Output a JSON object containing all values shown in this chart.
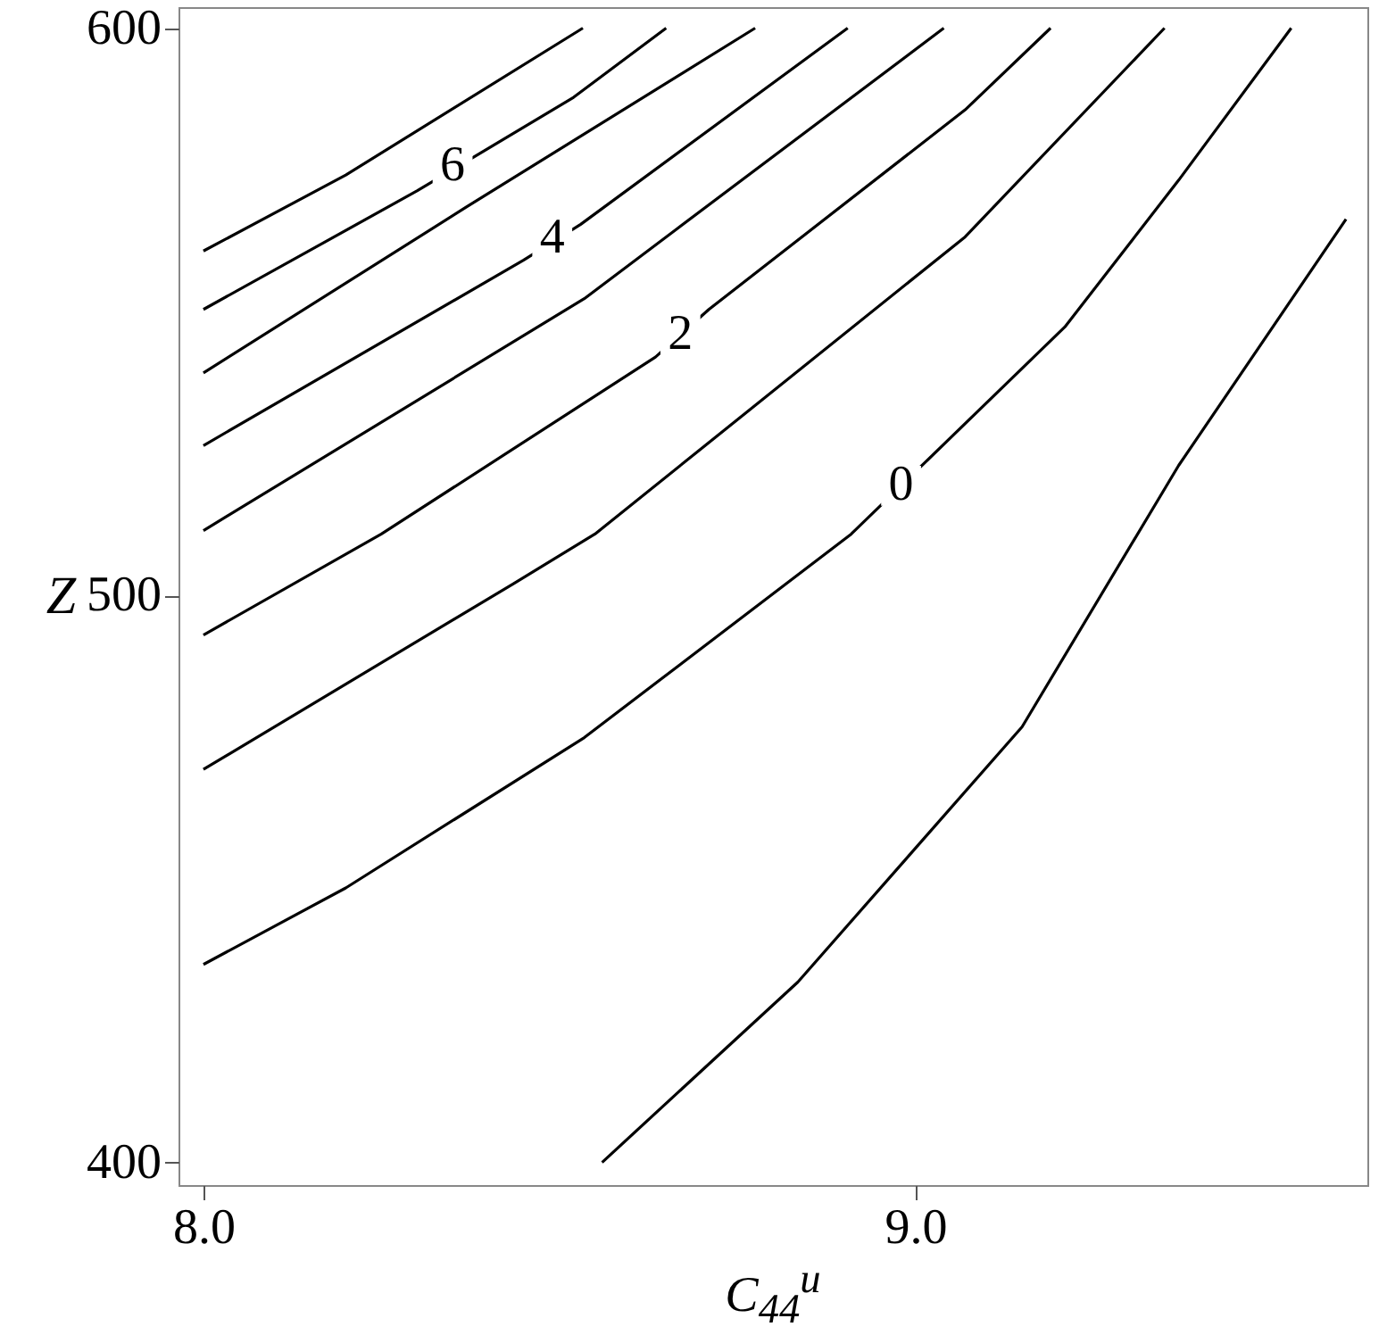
{
  "chart_data": {
    "type": "line",
    "xlabel": "C$_{44}$$^{u}$",
    "ylabel": "Z",
    "xlim": [
      7.965,
      9.635
    ],
    "ylim": [
      396,
      603.7
    ],
    "xticks": [
      {
        "value": 8,
        "label": "8.0"
      },
      {
        "value": 9,
        "label": "9.0"
      }
    ],
    "yticks": [
      400,
      500,
      600
    ],
    "grid": false,
    "marker": "none",
    "line_style": "solid",
    "series": [
      {
        "color": "#000000",
        "x": [
          8.56,
          8.835,
          9.15,
          9.37,
          9.605
        ],
        "values": [
          400,
          431.8,
          476.8,
          522.9,
          566.3
        ]
      },
      {
        "color": "#000000",
        "x": [
          8.0,
          8.2,
          8.535,
          8.91,
          9.21,
          9.37,
          9.528
        ],
        "values": [
          434.9,
          448.4,
          474.9,
          510.8,
          547.3,
          573.2,
          600
        ]
      },
      {
        "color": "#000000",
        "x": [
          8.0,
          8.435,
          8.55,
          9.07,
          9.35
        ],
        "values": [
          469.3,
          502,
          510.8,
          563.2,
          600
        ]
      },
      {
        "color": "#000000",
        "x": [
          8.0,
          8.25,
          8.635,
          8.71,
          9.07,
          9.19
        ],
        "values": [
          493,
          510.8,
          542,
          550.4,
          585.6,
          600
        ]
      },
      {
        "color": "#000000",
        "x": [
          8.0,
          8.535,
          9.04
        ],
        "values": [
          511.4,
          552.3,
          600
        ]
      },
      {
        "color": "#000000",
        "x": [
          8.0,
          8.45,
          8.53,
          8.905
        ],
        "values": [
          526.4,
          559.1,
          565.4,
          600
        ]
      },
      {
        "color": "#000000",
        "x": [
          8.0,
          8.37,
          8.775
        ],
        "values": [
          539.2,
          568.5,
          600
        ]
      },
      {
        "color": "#000000",
        "x": [
          8.0,
          8.3,
          8.52,
          8.65
        ],
        "values": [
          550.4,
          571.3,
          587.8,
          600
        ]
      },
      {
        "color": "#000000",
        "x": [
          8.0,
          8.2,
          8.533
        ],
        "values": [
          560.7,
          574.1,
          600
        ]
      }
    ],
    "annotations": [
      {
        "text": "6",
        "x": 8.35,
        "y": 575.7
      },
      {
        "text": "4",
        "x": 8.49,
        "y": 562.9
      },
      {
        "text": "2",
        "x": 8.67,
        "y": 546
      },
      {
        "text": "0",
        "x": 8.98,
        "y": 519.3
      }
    ]
  }
}
